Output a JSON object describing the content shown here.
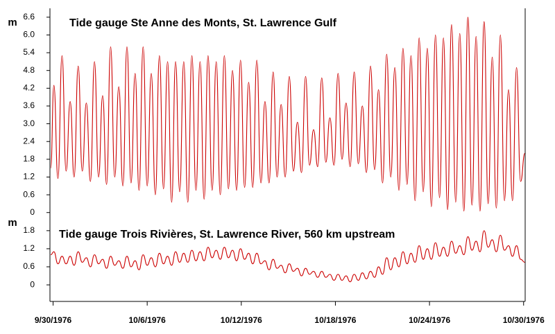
{
  "chart_data": [
    {
      "type": "line",
      "title": "Tide gauge Ste Anne des Monts, St. Lawrence Gulf",
      "y_label": "m",
      "color": "#cc0000",
      "xlim": [
        -0.2,
        30.1
      ],
      "ylim": [
        -0.1,
        6.9
      ],
      "yticks": [
        0,
        0.6,
        1.2,
        1.8,
        2.4,
        {
          "value": 3.0,
          "label": "3.0"
        },
        3.6,
        4.2,
        4.8,
        5.4,
        {
          "value": 6.0,
          "label": "6.0"
        },
        6.6
      ],
      "x": [
        -0.15,
        0.05,
        0.31,
        0.57,
        0.83,
        1.09,
        1.34,
        1.6,
        1.86,
        2.12,
        2.38,
        2.64,
        2.9,
        3.16,
        3.41,
        3.67,
        3.93,
        4.19,
        4.45,
        4.71,
        4.97,
        5.23,
        5.48,
        5.74,
        6.0,
        6.26,
        6.52,
        6.78,
        7.04,
        7.3,
        7.56,
        7.81,
        8.07,
        8.33,
        8.59,
        8.85,
        9.11,
        9.37,
        9.63,
        9.88,
        10.14,
        10.4,
        10.66,
        10.92,
        11.18,
        11.44,
        11.7,
        11.95,
        12.21,
        12.47,
        12.73,
        12.99,
        13.25,
        13.51,
        13.77,
        14.03,
        14.28,
        14.54,
        14.8,
        15.06,
        15.32,
        15.58,
        15.84,
        16.1,
        16.35,
        16.61,
        16.87,
        17.13,
        17.39,
        17.65,
        17.91,
        18.17,
        18.42,
        18.68,
        18.94,
        19.2,
        19.46,
        19.72,
        19.98,
        20.24,
        20.5,
        20.75,
        21.01,
        21.27,
        21.53,
        21.79,
        22.05,
        22.31,
        22.57,
        22.82,
        23.08,
        23.34,
        23.6,
        23.86,
        24.12,
        24.38,
        24.64,
        24.89,
        25.15,
        25.41,
        25.67,
        25.93,
        26.19,
        26.45,
        26.71,
        26.97,
        27.22,
        27.48,
        27.74,
        28.0,
        28.26,
        28.52,
        28.78,
        29.04,
        29.29,
        29.55,
        29.81,
        30.08
      ],
      "values": [
        1.5,
        4.3,
        1.15,
        5.3,
        1.4,
        3.75,
        1.2,
        4.95,
        1.4,
        3.7,
        1.05,
        5.1,
        1.2,
        3.95,
        0.95,
        5.6,
        1.2,
        4.25,
        0.9,
        5.6,
        1.0,
        4.7,
        0.75,
        5.6,
        0.9,
        4.7,
        0.6,
        5.3,
        0.8,
        5.1,
        0.35,
        5.1,
        0.7,
        5.1,
        0.35,
        5.3,
        0.75,
        5.1,
        0.45,
        5.3,
        0.75,
        5.1,
        0.6,
        5.3,
        0.8,
        4.8,
        0.75,
        5.15,
        0.85,
        4.4,
        0.85,
        5.15,
        1.0,
        3.75,
        1.0,
        4.75,
        1.2,
        3.65,
        1.2,
        4.6,
        1.4,
        3.05,
        1.35,
        4.6,
        1.6,
        2.8,
        1.55,
        4.55,
        1.7,
        3.2,
        1.6,
        4.7,
        1.8,
        3.7,
        1.55,
        4.75,
        1.65,
        3.6,
        1.35,
        4.95,
        1.45,
        4.15,
        1.0,
        5.35,
        1.2,
        4.9,
        0.75,
        5.55,
        0.95,
        5.3,
        0.4,
        5.9,
        0.7,
        5.55,
        0.2,
        6.0,
        0.5,
        5.9,
        0.1,
        6.35,
        0.35,
        6.05,
        0.05,
        6.6,
        0.25,
        5.95,
        0.05,
        6.45,
        0.3,
        5.25,
        0.15,
        6.0,
        0.4,
        4.15,
        0.4,
        4.9,
        1.05,
        2.0
      ]
    },
    {
      "type": "line",
      "title": "Tide gauge Trois Rivières, St. Lawrence River, 560 km upstream",
      "y_label": "m",
      "color": "#cc0000",
      "xlim": [
        -0.2,
        30.1
      ],
      "ylim": [
        -0.55,
        2.05
      ],
      "yticks": [
        0,
        0.6,
        1.2,
        1.8
      ],
      "xticks": [
        {
          "value": 0,
          "label": "9/30/1976"
        },
        {
          "value": 6,
          "label": "10/6/1976"
        },
        {
          "value": 12,
          "label": "10/12/1976"
        },
        {
          "value": 18,
          "label": "10/18/1976"
        },
        {
          "value": 24,
          "label": "10/24/1976"
        },
        {
          "value": 30,
          "label": "10/30/1976"
        }
      ],
      "x": [
        -0.15,
        0.05,
        0.31,
        0.57,
        0.83,
        1.09,
        1.34,
        1.6,
        1.86,
        2.12,
        2.38,
        2.64,
        2.9,
        3.16,
        3.41,
        3.67,
        3.93,
        4.19,
        4.45,
        4.71,
        4.97,
        5.23,
        5.48,
        5.74,
        6.0,
        6.26,
        6.52,
        6.78,
        7.04,
        7.3,
        7.56,
        7.81,
        8.07,
        8.33,
        8.59,
        8.85,
        9.11,
        9.37,
        9.63,
        9.88,
        10.14,
        10.4,
        10.66,
        10.92,
        11.18,
        11.44,
        11.7,
        11.95,
        12.21,
        12.47,
        12.73,
        12.99,
        13.25,
        13.51,
        13.77,
        14.03,
        14.28,
        14.54,
        14.8,
        15.06,
        15.32,
        15.58,
        15.84,
        16.1,
        16.35,
        16.61,
        16.87,
        17.13,
        17.39,
        17.65,
        17.91,
        18.17,
        18.42,
        18.68,
        18.94,
        19.2,
        19.46,
        19.72,
        19.98,
        20.24,
        20.5,
        20.75,
        21.01,
        21.27,
        21.53,
        21.79,
        22.05,
        22.31,
        22.57,
        22.82,
        23.08,
        23.34,
        23.6,
        23.86,
        24.12,
        24.38,
        24.64,
        24.89,
        25.15,
        25.41,
        25.67,
        25.93,
        26.19,
        26.45,
        26.71,
        26.97,
        27.22,
        27.48,
        27.74,
        28.0,
        28.26,
        28.52,
        28.78,
        29.04,
        29.29,
        29.55,
        29.81,
        30.08
      ],
      "values": [
        1.0,
        1.1,
        0.7,
        0.95,
        0.7,
        0.95,
        0.65,
        1.1,
        0.75,
        0.9,
        0.6,
        1.0,
        0.7,
        0.85,
        0.55,
        0.95,
        0.65,
        0.8,
        0.55,
        0.95,
        0.6,
        0.8,
        0.5,
        1.0,
        0.65,
        0.9,
        0.6,
        1.05,
        0.7,
        0.95,
        0.65,
        1.1,
        0.75,
        1.05,
        0.75,
        1.15,
        0.8,
        1.1,
        0.8,
        1.25,
        0.9,
        1.15,
        0.85,
        1.25,
        0.9,
        1.15,
        0.8,
        1.2,
        0.85,
        1.05,
        0.7,
        1.05,
        0.7,
        0.8,
        0.5,
        0.85,
        0.55,
        0.65,
        0.4,
        0.7,
        0.45,
        0.55,
        0.3,
        0.55,
        0.35,
        0.45,
        0.25,
        0.45,
        0.25,
        0.35,
        0.15,
        0.35,
        0.15,
        0.3,
        0.1,
        0.35,
        0.15,
        0.4,
        0.2,
        0.45,
        0.25,
        0.6,
        0.35,
        0.9,
        0.5,
        0.9,
        0.6,
        1.1,
        0.7,
        1.05,
        0.75,
        1.3,
        0.85,
        1.2,
        0.85,
        1.4,
        0.95,
        1.25,
        0.95,
        1.45,
        1.05,
        1.3,
        1.0,
        1.6,
        1.15,
        1.45,
        1.1,
        1.8,
        1.25,
        1.5,
        1.1,
        1.65,
        1.15,
        1.3,
        0.95,
        1.3,
        0.85,
        0.75
      ]
    }
  ]
}
